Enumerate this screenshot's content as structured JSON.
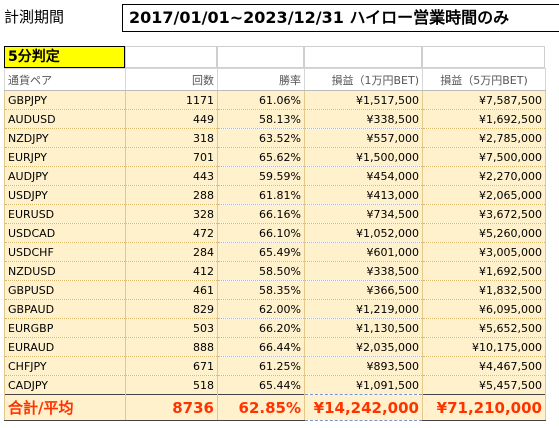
{
  "header": {
    "label": "計測期間",
    "period": "2017/01/01~2023/12/31 ハイロー営業時間のみ"
  },
  "title": "5分判定",
  "columns": [
    "通貨ペア",
    "回数",
    "勝率",
    "損益（1万円BET)",
    "損益（5万円BET)"
  ],
  "rows": [
    {
      "pair": "GBPJPY",
      "count": "1171",
      "rate": "61.06%",
      "pl1": "¥1,517,500",
      "pl5": "¥7,587,500"
    },
    {
      "pair": "AUDUSD",
      "count": "449",
      "rate": "58.13%",
      "pl1": "¥338,500",
      "pl5": "¥1,692,500"
    },
    {
      "pair": "NZDJPY",
      "count": "318",
      "rate": "63.52%",
      "pl1": "¥557,000",
      "pl5": "¥2,785,000"
    },
    {
      "pair": "EURJPY",
      "count": "701",
      "rate": "65.62%",
      "pl1": "¥1,500,000",
      "pl5": "¥7,500,000"
    },
    {
      "pair": "AUDJPY",
      "count": "443",
      "rate": "59.59%",
      "pl1": "¥454,000",
      "pl5": "¥2,270,000"
    },
    {
      "pair": "USDJPY",
      "count": "288",
      "rate": "61.81%",
      "pl1": "¥413,000",
      "pl5": "¥2,065,000"
    },
    {
      "pair": "EURUSD",
      "count": "328",
      "rate": "66.16%",
      "pl1": "¥734,500",
      "pl5": "¥3,672,500"
    },
    {
      "pair": "USDCAD",
      "count": "472",
      "rate": "66.10%",
      "pl1": "¥1,052,000",
      "pl5": "¥5,260,000"
    },
    {
      "pair": "USDCHF",
      "count": "284",
      "rate": "65.49%",
      "pl1": "¥601,000",
      "pl5": "¥3,005,000"
    },
    {
      "pair": "NZDUSD",
      "count": "412",
      "rate": "58.50%",
      "pl1": "¥338,500",
      "pl5": "¥1,692,500"
    },
    {
      "pair": "GBPUSD",
      "count": "461",
      "rate": "58.35%",
      "pl1": "¥366,500",
      "pl5": "¥1,832,500"
    },
    {
      "pair": "GBPAUD",
      "count": "829",
      "rate": "62.00%",
      "pl1": "¥1,219,000",
      "pl5": "¥6,095,000"
    },
    {
      "pair": "EURGBP",
      "count": "503",
      "rate": "66.20%",
      "pl1": "¥1,130,500",
      "pl5": "¥5,652,500"
    },
    {
      "pair": "EURAUD",
      "count": "888",
      "rate": "66.44%",
      "pl1": "¥2,035,000",
      "pl5": "¥10,175,000"
    },
    {
      "pair": "CHFJPY",
      "count": "671",
      "rate": "61.25%",
      "pl1": "¥893,500",
      "pl5": "¥4,467,500"
    },
    {
      "pair": "CADJPY",
      "count": "518",
      "rate": "65.44%",
      "pl1": "¥1,091,500",
      "pl5": "¥5,457,500"
    }
  ],
  "total": {
    "label": "合計/平均",
    "count": "8736",
    "rate": "62.85%",
    "pl1": "¥14,242,000",
    "pl5": "¥71,210,000"
  },
  "colors": {
    "title_bg": "#ffff00",
    "cell_bg": "#fff1cc",
    "total_text": "#ff3300"
  }
}
